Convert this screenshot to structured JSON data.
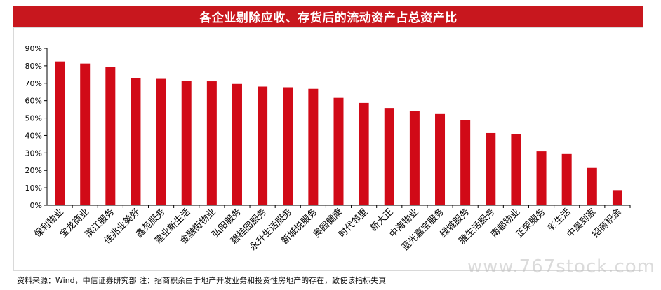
{
  "title": "各企业剔除应收、存货后的流动资产占总资产比",
  "source": "资料来源：Wind，中信证券研究部 注：招商积余由于地产开发业务和投资性房地产的存在，致使该指标失真",
  "watermark": "www.767stock.com",
  "colors": {
    "bar": "#d10a17",
    "title_bg": "#c8171e"
  },
  "chart_data": {
    "type": "bar",
    "categories": [
      "保利物业",
      "宝龙商业",
      "滨江服务",
      "佳兆业美好",
      "鑫苑服务",
      "建业新生活",
      "金融街物业",
      "弘阳服务",
      "碧桂园服务",
      "永升生活服务",
      "新城悦服务",
      "奥园健康",
      "时代邻里",
      "新大正",
      "中海物业",
      "蓝光嘉宝服务",
      "绿城服务",
      "雅生活服务",
      "南都物业",
      "正荣服务",
      "彩生活",
      "中奥到家",
      "招商积余"
    ],
    "values": [
      82.5,
      81.3,
      79.3,
      72.8,
      72.5,
      71.3,
      71.1,
      69.6,
      68.1,
      67.7,
      66.8,
      61.6,
      58.7,
      55.8,
      54.1,
      52.3,
      48.8,
      41.4,
      40.8,
      30.9,
      29.4,
      21.4,
      8.7
    ],
    "ylim": [
      0,
      90
    ],
    "yticks": [
      0,
      10,
      20,
      30,
      40,
      50,
      60,
      70,
      80,
      90
    ],
    "ytick_labels": [
      "0%",
      "10%",
      "20%",
      "30%",
      "40%",
      "50%",
      "60%",
      "70%",
      "80%",
      "90%"
    ],
    "xlabel": "",
    "ylabel": "",
    "grid": false
  }
}
